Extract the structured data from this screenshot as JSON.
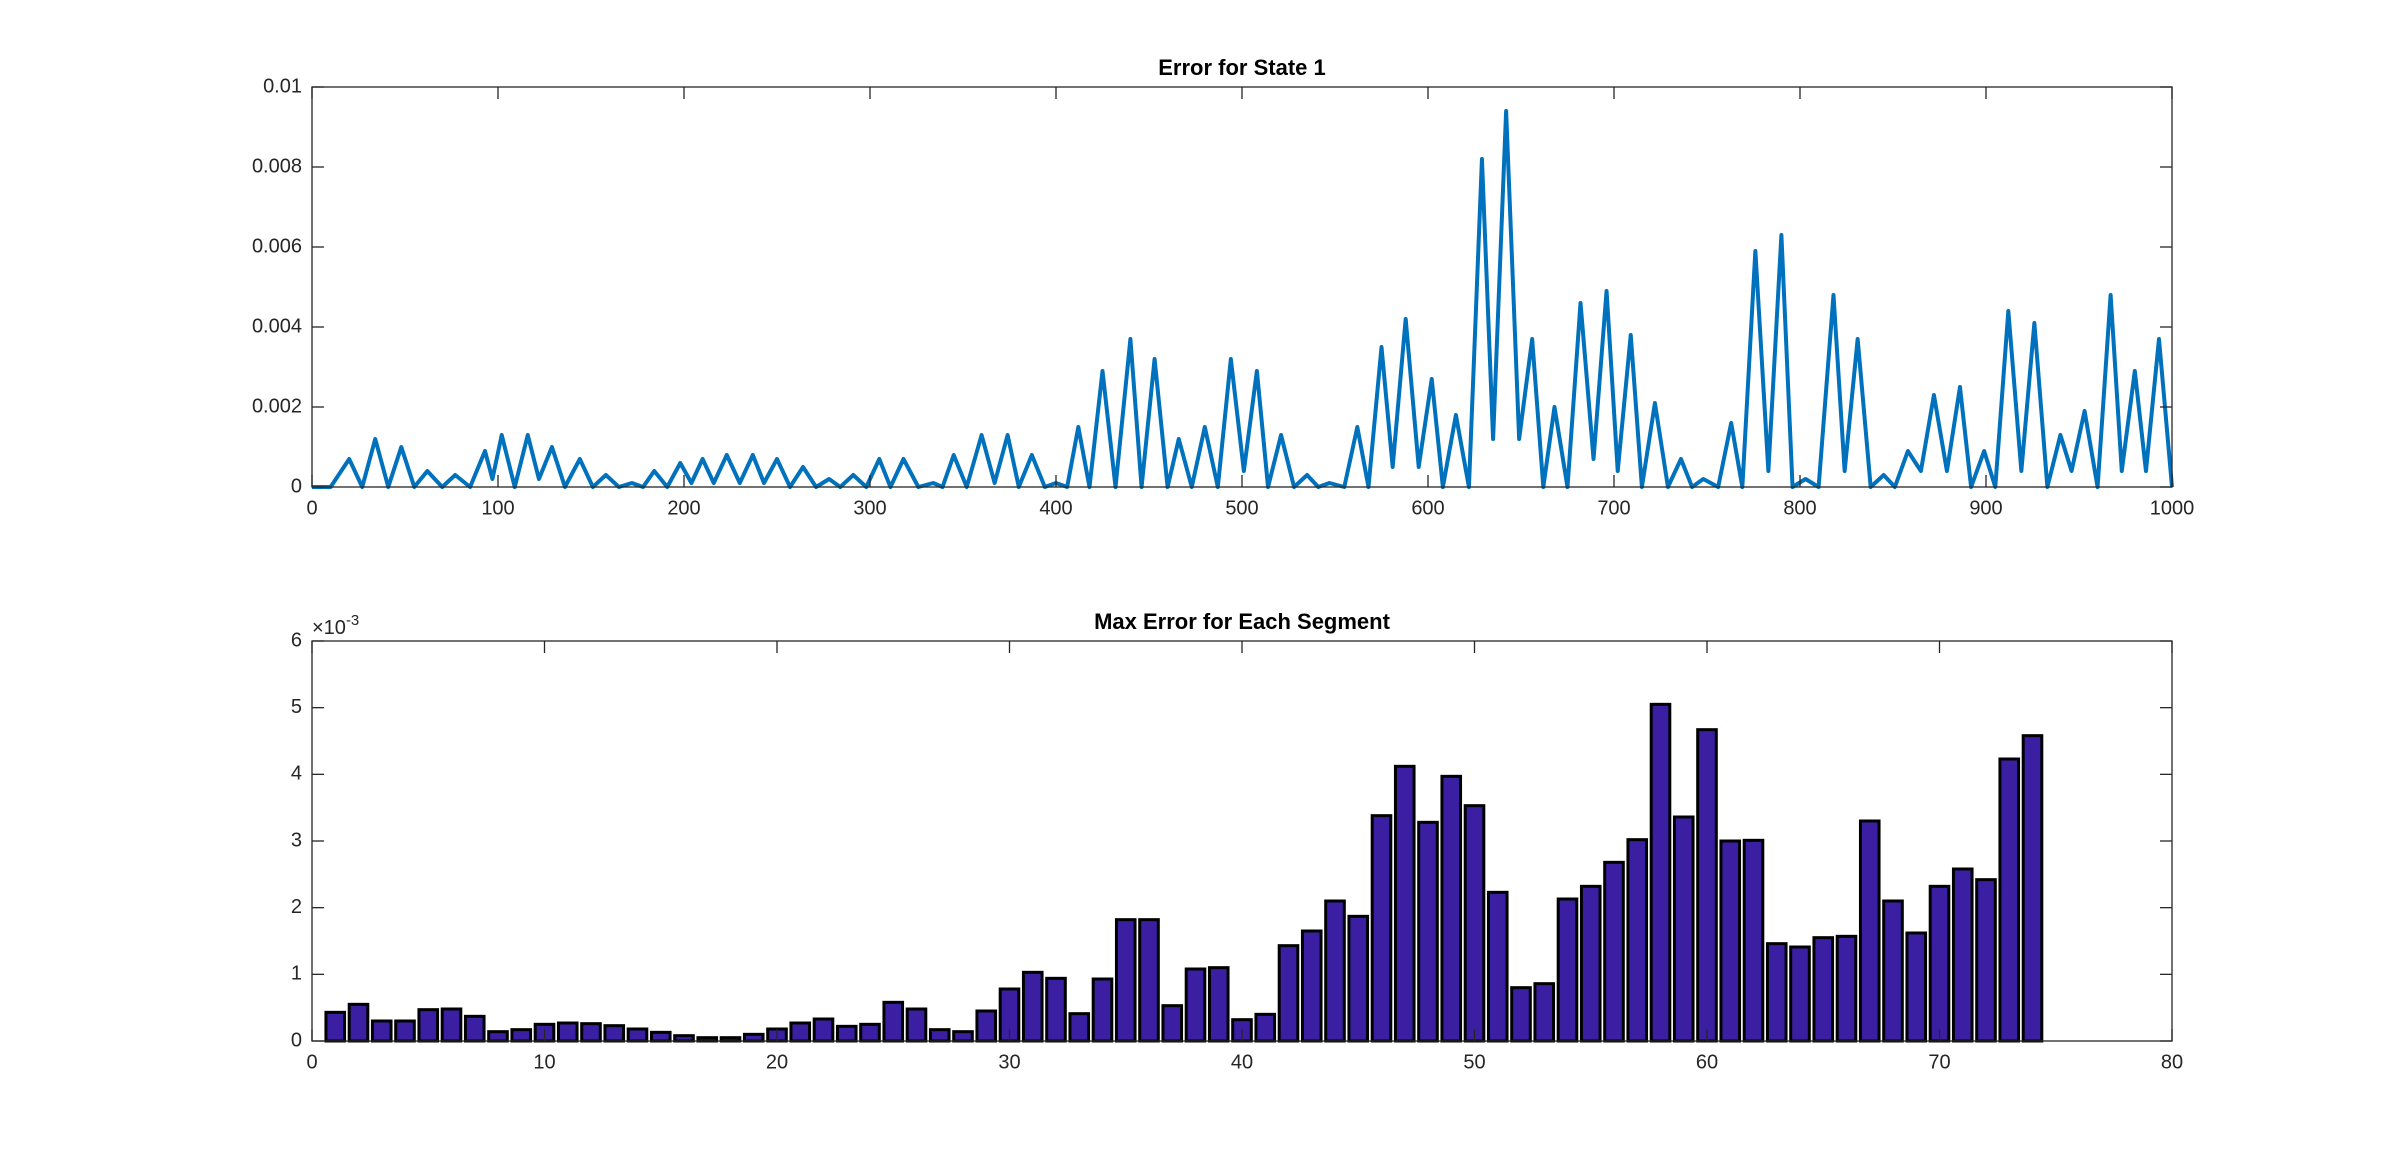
{
  "chart_data": [
    {
      "type": "line",
      "title": "Error for State 1",
      "x": [
        0,
        10,
        20,
        27,
        34,
        41,
        48,
        55,
        62,
        70,
        77,
        85,
        93,
        97,
        102,
        109,
        116,
        122,
        129,
        136,
        144,
        151,
        158,
        165,
        172,
        178,
        184,
        191,
        198,
        204,
        210,
        216,
        223,
        230,
        237,
        243,
        250,
        257,
        264,
        271,
        278,
        284,
        291,
        298,
        305,
        311,
        318,
        326,
        334,
        339,
        345,
        352,
        360,
        367,
        374,
        380,
        387,
        394,
        400,
        406,
        412,
        418,
        425,
        432,
        440,
        446,
        453,
        460,
        466,
        473,
        480,
        487,
        494,
        501,
        508,
        514,
        521,
        528,
        535,
        541,
        547,
        555,
        562,
        568,
        575,
        581,
        588,
        595,
        602,
        608,
        615,
        622,
        629,
        635,
        642,
        649,
        656,
        662,
        668,
        675,
        682,
        689,
        696,
        702,
        709,
        715,
        722,
        729,
        736,
        742,
        748,
        756,
        763,
        769,
        776,
        783,
        790,
        796,
        803,
        810,
        818,
        824,
        831,
        838,
        845,
        851,
        858,
        865,
        872,
        879,
        886,
        892,
        899,
        905,
        912,
        919,
        926,
        933,
        940,
        946,
        953,
        960,
        967,
        973,
        980,
        986,
        993,
        1000
      ],
      "series": [
        {
          "color": "#0072bd",
          "values": [
            0,
            0,
            0.0007,
            0,
            0.0012,
            0,
            0.001,
            0,
            0.0004,
            0,
            0.0003,
            0,
            0.0009,
            0.0002,
            0.0013,
            0,
            0.0013,
            0.0002,
            0.001,
            0,
            0.0007,
            0,
            0.0003,
            0,
            0.0001,
            0,
            0.0004,
            0,
            0.0006,
            0.0001,
            0.0007,
            0.0001,
            0.0008,
            0.0001,
            0.0008,
            0.0001,
            0.0007,
            0,
            0.0005,
            0,
            0.0002,
            0,
            0.0003,
            0,
            0.0007,
            0,
            0.0007,
            0,
            0.0001,
            0,
            0.0008,
            0,
            0.0013,
            0.0001,
            0.0013,
            0,
            0.0008,
            0,
            0.0001,
            0,
            0.0015,
            0,
            0.0029,
            0,
            0.0037,
            0,
            0.0032,
            0,
            0.0012,
            0,
            0.0015,
            0,
            0.0032,
            0.0004,
            0.0029,
            0,
            0.0013,
            0,
            0.0003,
            0,
            0.0001,
            0,
            0.0015,
            0,
            0.0035,
            0.0005,
            0.0042,
            0.0005,
            0.0027,
            0,
            0.0018,
            0,
            0.0082,
            0.0012,
            0.0094,
            0.0012,
            0.0037,
            0,
            0.002,
            0,
            0.0046,
            0.0007,
            0.0049,
            0.0004,
            0.0038,
            0,
            0.0021,
            0,
            0.0007,
            0,
            0.0002,
            0,
            0.0016,
            0,
            0.0059,
            0.0004,
            0.0063,
            0,
            0.0002,
            0,
            0.0048,
            0.0004,
            0.0037,
            0,
            0.0003,
            0,
            0.0009,
            0.0004,
            0.0023,
            0.0004,
            0.0025,
            0,
            0.0009,
            0,
            0.0044,
            0.0004,
            0.0041,
            0,
            0.0013,
            0.0004,
            0.0019,
            0,
            0.0048,
            0.0004,
            0.0029,
            0.0004,
            0.0037,
            0
          ]
        }
      ],
      "xlim": [
        0,
        1000
      ],
      "xticks": [
        0,
        100,
        200,
        300,
        400,
        500,
        600,
        700,
        800,
        900,
        1000
      ],
      "ylim": [
        0,
        0.01
      ],
      "yticks": [
        0,
        0.002,
        0.004,
        0.006,
        0.008,
        0.01
      ]
    },
    {
      "type": "bar",
      "title": "Max Error for Each Segment",
      "x": [
        1,
        2,
        3,
        4,
        5,
        6,
        7,
        8,
        9,
        10,
        11,
        12,
        13,
        14,
        15,
        16,
        17,
        18,
        19,
        20,
        21,
        22,
        23,
        24,
        25,
        26,
        27,
        28,
        29,
        30,
        31,
        32,
        33,
        34,
        35,
        36,
        37,
        38,
        39,
        40,
        41,
        42,
        43,
        44,
        45,
        46,
        47,
        48,
        49,
        50,
        51,
        52,
        53,
        54,
        55,
        56,
        57,
        58,
        59,
        60,
        61,
        62,
        63,
        64,
        65,
        66,
        67,
        68,
        69,
        70,
        71,
        72,
        73,
        74
      ],
      "series": [
        {
          "color": "#3b1fa3",
          "values": [
            0.43,
            0.55,
            0.3,
            0.3,
            0.47,
            0.48,
            0.37,
            0.14,
            0.17,
            0.25,
            0.27,
            0.26,
            0.23,
            0.18,
            0.13,
            0.08,
            0.05,
            0.05,
            0.1,
            0.18,
            0.27,
            0.33,
            0.22,
            0.25,
            0.58,
            0.48,
            0.17,
            0.14,
            0.45,
            0.78,
            1.03,
            0.94,
            0.41,
            0.93,
            1.82,
            1.82,
            0.53,
            1.08,
            1.1,
            0.32,
            0.4,
            1.43,
            1.65,
            2.1,
            1.87,
            3.38,
            4.12,
            3.28,
            3.97,
            3.53,
            2.23,
            0.8,
            0.86,
            2.13,
            2.32,
            2.68,
            3.02,
            5.05,
            3.36,
            4.67,
            3.0,
            3.01,
            1.46,
            1.41,
            1.55,
            1.57,
            3.3,
            2.1,
            1.62,
            2.32,
            2.58,
            2.42,
            4.23,
            4.58
          ]
        }
      ],
      "xlim": [
        0,
        80
      ],
      "xticks": [
        0,
        10,
        20,
        30,
        40,
        50,
        60,
        70,
        80
      ],
      "ylim": [
        0,
        6
      ],
      "yticks": [
        0,
        1,
        2,
        3,
        4,
        5,
        6
      ],
      "y_exponent_base": "×10",
      "y_exponent": "-3"
    }
  ]
}
